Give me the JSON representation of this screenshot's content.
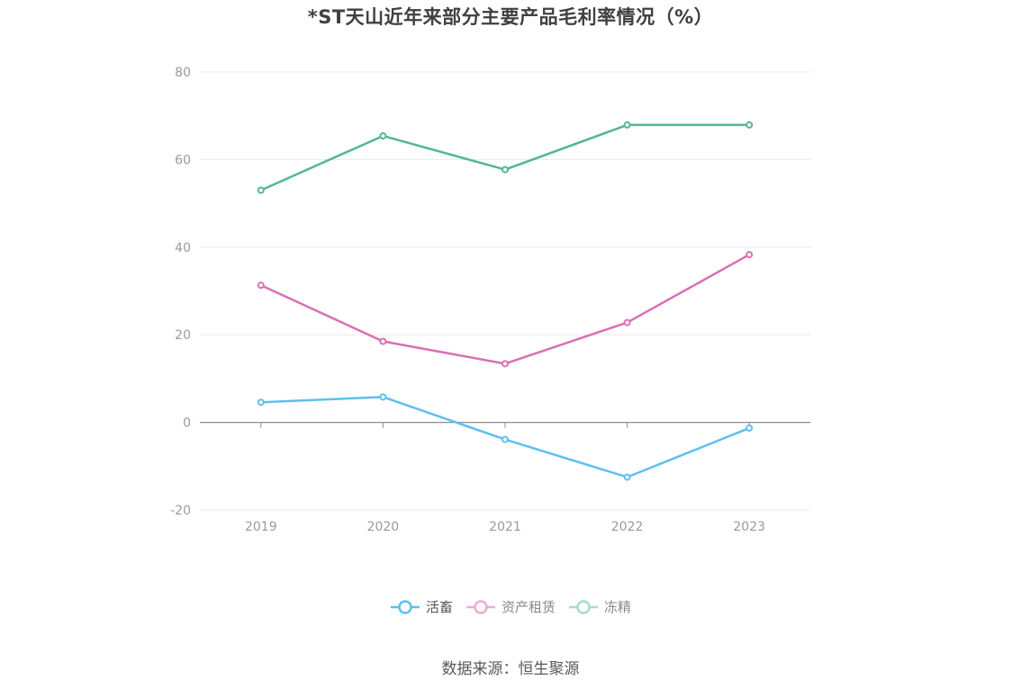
{
  "title": "*ST天山近年来部分主要产品毛利率情况（%）",
  "source": "数据来源：恒生聚源",
  "chart_data": {
    "type": "line",
    "title": "*ST天山近年来部分主要产品毛利率情况（%）",
    "xlabel": "",
    "ylabel": "",
    "categories": [
      "2019",
      "2020",
      "2021",
      "2022",
      "2023"
    ],
    "ylim": [
      -20,
      80
    ],
    "yticks": [
      -20,
      0,
      20,
      40,
      60,
      80
    ],
    "grid": true,
    "legend_position": "bottom-center",
    "series": [
      {
        "name": "活畜",
        "color": "#5ebfef",
        "values": [
          4.6,
          5.8,
          -3.9,
          -12.5,
          -1.3
        ]
      },
      {
        "name": "资产租赁",
        "color": "#d96fb4",
        "values": [
          31.3,
          18.5,
          13.4,
          22.8,
          38.3
        ]
      },
      {
        "name": "冻精",
        "color": "#52b69a",
        "values": [
          53.0,
          65.4,
          57.7,
          67.9,
          67.9
        ]
      }
    ]
  }
}
